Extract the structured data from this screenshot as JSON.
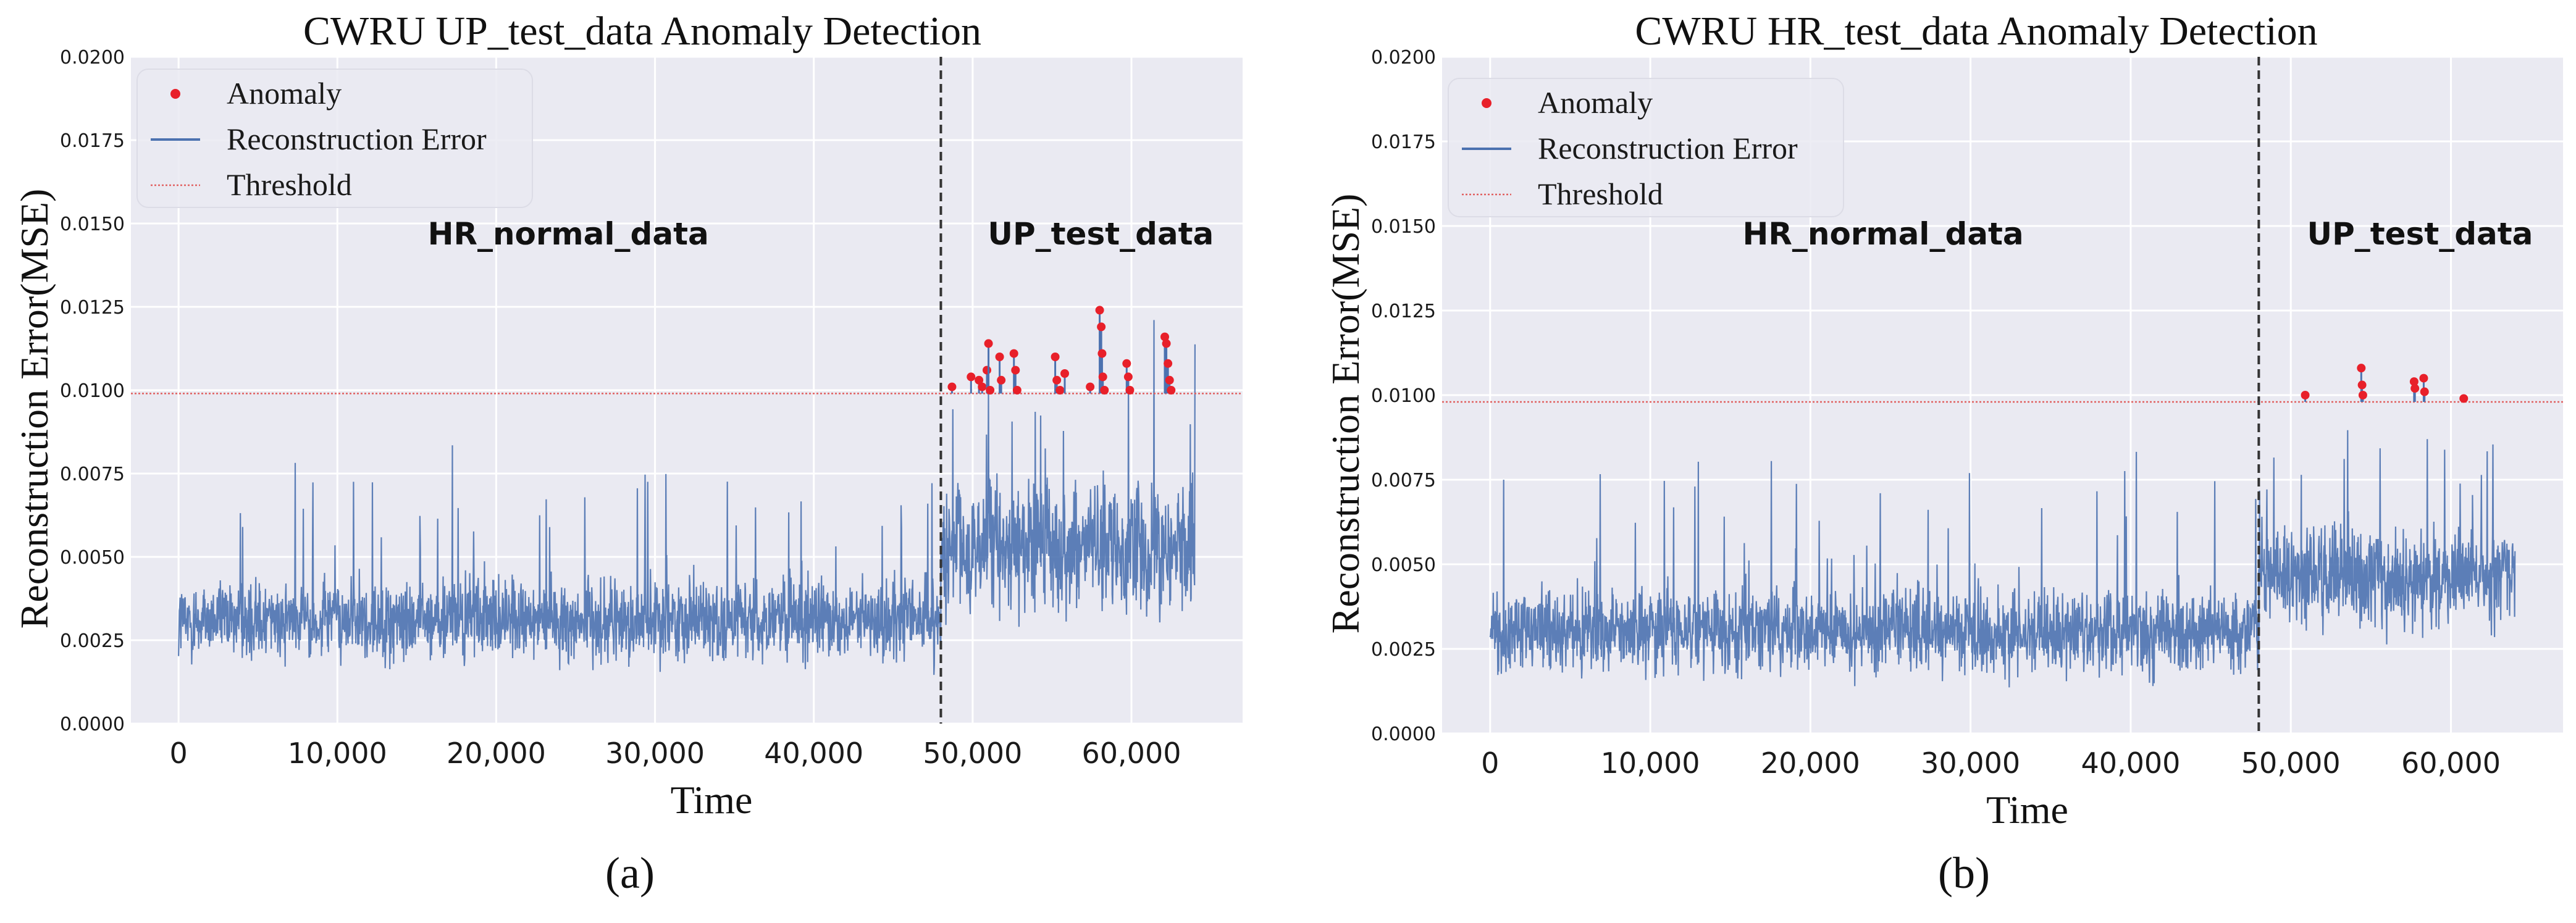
{
  "charts": [
    {
      "panel_label": "(a)",
      "chart_data": {
        "type": "line",
        "title": "CWRU UP_test_data Anomaly Detection",
        "xlabel": "Time",
        "ylabel": "Reconstruction Error(MSE)",
        "xlim": [
          -3000,
          67000
        ],
        "ylim": [
          0,
          0.02
        ],
        "x_ticks": [
          0,
          10000,
          20000,
          30000,
          40000,
          50000,
          60000
        ],
        "x_tick_labels": [
          "0",
          "10,000",
          "20,000",
          "30,000",
          "40,000",
          "50,000",
          "60,000"
        ],
        "y_ticks": [
          0,
          0.0025,
          0.005,
          0.0075,
          0.01,
          0.0125,
          0.015,
          0.0175,
          0.02
        ],
        "y_tick_labels": [
          "0.0000",
          "0.0025",
          "0.0050",
          "0.0075",
          "0.0100",
          "0.0125",
          "0.0150",
          "0.0175",
          "0.0200"
        ],
        "grid": true,
        "legend_position": "top-left",
        "legend": [
          "Anomaly",
          "Reconstruction Error",
          "Threshold"
        ],
        "threshold": 0.0099,
        "split_x": 48000,
        "region_labels": [
          "HR_normal_data",
          "UP_test_data"
        ],
        "series": [
          {
            "name": "Reconstruction Error",
            "segments": [
              {
                "x_start": 0,
                "x_end": 48000,
                "base": 0.0031,
                "spread": 0.0009,
                "peak": 0.0084
              },
              {
                "x_start": 48000,
                "x_end": 64000,
                "base": 0.0053,
                "spread": 0.0014,
                "peak": 0.0124
              }
            ]
          }
        ],
        "anomalies": [
          {
            "x": 48700,
            "y": 0.0101
          },
          {
            "x": 49900,
            "y": 0.0104
          },
          {
            "x": 50400,
            "y": 0.0103
          },
          {
            "x": 50600,
            "y": 0.0101
          },
          {
            "x": 50900,
            "y": 0.0106
          },
          {
            "x": 51000,
            "y": 0.0114
          },
          {
            "x": 51100,
            "y": 0.01
          },
          {
            "x": 51700,
            "y": 0.011
          },
          {
            "x": 51800,
            "y": 0.0103
          },
          {
            "x": 52600,
            "y": 0.0111
          },
          {
            "x": 52700,
            "y": 0.0106
          },
          {
            "x": 52800,
            "y": 0.01
          },
          {
            "x": 55200,
            "y": 0.011
          },
          {
            "x": 55300,
            "y": 0.0103
          },
          {
            "x": 55500,
            "y": 0.01
          },
          {
            "x": 55800,
            "y": 0.0105
          },
          {
            "x": 57400,
            "y": 0.0101
          },
          {
            "x": 58000,
            "y": 0.0124
          },
          {
            "x": 58100,
            "y": 0.0119
          },
          {
            "x": 58150,
            "y": 0.0111
          },
          {
            "x": 58200,
            "y": 0.0104
          },
          {
            "x": 58300,
            "y": 0.01
          },
          {
            "x": 59700,
            "y": 0.0108
          },
          {
            "x": 59800,
            "y": 0.0104
          },
          {
            "x": 59900,
            "y": 0.01
          },
          {
            "x": 62100,
            "y": 0.0116
          },
          {
            "x": 62200,
            "y": 0.0114
          },
          {
            "x": 62300,
            "y": 0.0108
          },
          {
            "x": 62400,
            "y": 0.0103
          },
          {
            "x": 62500,
            "y": 0.01
          }
        ]
      }
    },
    {
      "panel_label": "(b)",
      "chart_data": {
        "type": "line",
        "title": "CWRU HR_test_data Anomaly Detection",
        "xlabel": "Time",
        "ylabel": "Reconstruction Error(MSE)",
        "xlim": [
          -3000,
          67000
        ],
        "ylim": [
          0,
          0.02
        ],
        "x_ticks": [
          0,
          10000,
          20000,
          30000,
          40000,
          50000,
          60000
        ],
        "x_tick_labels": [
          "0",
          "10,000",
          "20,000",
          "30,000",
          "40,000",
          "50,000",
          "60,000"
        ],
        "y_ticks": [
          0,
          0.0025,
          0.005,
          0.0075,
          0.01,
          0.0125,
          0.015,
          0.0175,
          0.02
        ],
        "y_tick_labels": [
          "0.0000",
          "0.0025",
          "0.0050",
          "0.0075",
          "0.0100",
          "0.0125",
          "0.0150",
          "0.0175",
          "0.0200"
        ],
        "grid": true,
        "legend_position": "top-left",
        "legend": [
          "Anomaly",
          "Reconstruction Error",
          "Threshold"
        ],
        "threshold": 0.0098,
        "split_x": 48000,
        "region_labels": [
          "HR_normal_data",
          "UP_test_data"
        ],
        "series": [
          {
            "name": "Reconstruction Error",
            "segments": [
              {
                "x_start": 0,
                "x_end": 48000,
                "base": 0.003,
                "spread": 0.0009,
                "peak": 0.0084
              },
              {
                "x_start": 48000,
                "x_end": 64000,
                "base": 0.0046,
                "spread": 0.0011,
                "peak": 0.0108
              }
            ]
          }
        ],
        "anomalies": [
          {
            "x": 50900,
            "y": 0.01
          },
          {
            "x": 54400,
            "y": 0.0108
          },
          {
            "x": 54450,
            "y": 0.0103
          },
          {
            "x": 54500,
            "y": 0.01
          },
          {
            "x": 57700,
            "y": 0.0104
          },
          {
            "x": 57750,
            "y": 0.0102
          },
          {
            "x": 58300,
            "y": 0.0105
          },
          {
            "x": 58350,
            "y": 0.0101
          },
          {
            "x": 60800,
            "y": 0.0099
          }
        ]
      }
    }
  ]
}
